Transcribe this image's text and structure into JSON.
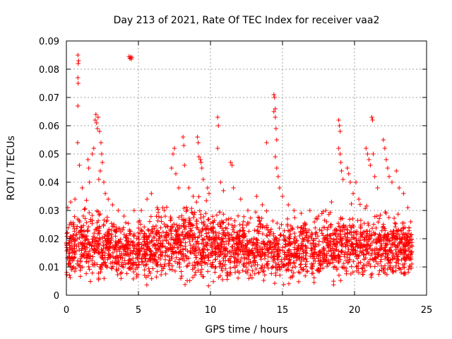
{
  "chart_data": {
    "type": "scatter",
    "title": "Day 213 of 2021, Rate Of TEC Index for receiver vaa2",
    "xlabel": "GPS time / hours",
    "ylabel": "ROTI / TECUs",
    "xlim": [
      0,
      25
    ],
    "ylim": [
      0,
      0.09
    ],
    "xticks": [
      0,
      5,
      10,
      15,
      20,
      25
    ],
    "xtick_labels": [
      "0",
      "5",
      "10",
      "15",
      "20",
      "25"
    ],
    "yticks": [
      0,
      0.01,
      0.02,
      0.03,
      0.04,
      0.05,
      0.06,
      0.07,
      0.08,
      0.09
    ],
    "ytick_labels": [
      "0",
      "0.01",
      "0.02",
      "0.03",
      "0.04",
      "0.05",
      "0.06",
      "0.07",
      "0.08",
      "0.09"
    ],
    "grid": true,
    "marker": "plus",
    "color": "#ff0000",
    "notes": "Dense band of points between ~0.003 and ~0.03 TECU across 0-24 h; listed points are the visible high outliers and representative samples.",
    "series": [
      {
        "name": "ROTI",
        "points": [
          [
            0.8,
            0.085
          ],
          [
            0.85,
            0.083
          ],
          [
            0.82,
            0.082
          ],
          [
            0.8,
            0.077
          ],
          [
            0.82,
            0.075
          ],
          [
            0.8,
            0.067
          ],
          [
            0.78,
            0.054
          ],
          [
            0.9,
            0.046
          ],
          [
            1.1,
            0.038
          ],
          [
            0.6,
            0.034
          ],
          [
            0.3,
            0.033
          ],
          [
            0.1,
            0.031
          ],
          [
            1.5,
            0.048
          ],
          [
            1.55,
            0.045
          ],
          [
            1.6,
            0.04
          ],
          [
            1.8,
            0.05
          ],
          [
            1.9,
            0.052
          ],
          [
            2.0,
            0.062
          ],
          [
            2.05,
            0.064
          ],
          [
            2.1,
            0.061
          ],
          [
            2.15,
            0.059
          ],
          [
            2.2,
            0.063
          ],
          [
            2.3,
            0.058
          ],
          [
            2.4,
            0.054
          ],
          [
            2.45,
            0.05
          ],
          [
            2.5,
            0.047
          ],
          [
            2.35,
            0.044
          ],
          [
            2.25,
            0.041
          ],
          [
            2.6,
            0.04
          ],
          [
            2.7,
            0.036
          ],
          [
            2.9,
            0.034
          ],
          [
            3.2,
            0.032
          ],
          [
            3.6,
            0.03
          ],
          [
            4.0,
            0.028
          ],
          [
            4.35,
            0.0845
          ],
          [
            4.45,
            0.0843
          ],
          [
            4.55,
            0.0842
          ],
          [
            4.4,
            0.0838
          ],
          [
            4.5,
            0.0836
          ],
          [
            4.7,
            0.03
          ],
          [
            5.2,
            0.03
          ],
          [
            5.6,
            0.034
          ],
          [
            5.9,
            0.036
          ],
          [
            6.3,
            0.031
          ],
          [
            6.8,
            0.03
          ],
          [
            7.3,
            0.045
          ],
          [
            7.4,
            0.05
          ],
          [
            7.5,
            0.052
          ],
          [
            7.6,
            0.043
          ],
          [
            7.8,
            0.038
          ],
          [
            8.1,
            0.056
          ],
          [
            8.15,
            0.053
          ],
          [
            8.2,
            0.046
          ],
          [
            8.5,
            0.038
          ],
          [
            8.8,
            0.035
          ],
          [
            9.1,
            0.056
          ],
          [
            9.15,
            0.054
          ],
          [
            9.2,
            0.049
          ],
          [
            9.3,
            0.048
          ],
          [
            9.35,
            0.047
          ],
          [
            9.4,
            0.045
          ],
          [
            9.5,
            0.041
          ],
          [
            9.8,
            0.038
          ],
          [
            9.9,
            0.036
          ],
          [
            10.5,
            0.063
          ],
          [
            10.55,
            0.06
          ],
          [
            10.5,
            0.052
          ],
          [
            10.7,
            0.04
          ],
          [
            10.9,
            0.037
          ],
          [
            11.4,
            0.047
          ],
          [
            11.5,
            0.046
          ],
          [
            11.6,
            0.038
          ],
          [
            12.1,
            0.034
          ],
          [
            12.6,
            0.03
          ],
          [
            13.2,
            0.035
          ],
          [
            13.6,
            0.032
          ],
          [
            13.9,
            0.054
          ],
          [
            14.4,
            0.071
          ],
          [
            14.45,
            0.07
          ],
          [
            14.5,
            0.066
          ],
          [
            14.4,
            0.065
          ],
          [
            14.5,
            0.063
          ],
          [
            14.55,
            0.059
          ],
          [
            14.6,
            0.055
          ],
          [
            14.5,
            0.049
          ],
          [
            14.6,
            0.045
          ],
          [
            14.7,
            0.042
          ],
          [
            14.8,
            0.038
          ],
          [
            15.0,
            0.035
          ],
          [
            15.4,
            0.032
          ],
          [
            15.8,
            0.03
          ],
          [
            16.3,
            0.029
          ],
          [
            16.9,
            0.03
          ],
          [
            17.5,
            0.028
          ],
          [
            18.0,
            0.03
          ],
          [
            18.4,
            0.033
          ],
          [
            18.9,
            0.062
          ],
          [
            18.95,
            0.06
          ],
          [
            19.0,
            0.058
          ],
          [
            18.9,
            0.052
          ],
          [
            19.0,
            0.05
          ],
          [
            19.05,
            0.047
          ],
          [
            19.1,
            0.044
          ],
          [
            19.2,
            0.041
          ],
          [
            19.5,
            0.045
          ],
          [
            19.6,
            0.043
          ],
          [
            19.7,
            0.04
          ],
          [
            19.9,
            0.036
          ],
          [
            20.1,
            0.04
          ],
          [
            20.3,
            0.034
          ],
          [
            20.8,
            0.052
          ],
          [
            20.9,
            0.05
          ],
          [
            21.0,
            0.048
          ],
          [
            21.1,
            0.046
          ],
          [
            21.2,
            0.063
          ],
          [
            21.25,
            0.062
          ],
          [
            21.3,
            0.05
          ],
          [
            21.4,
            0.042
          ],
          [
            21.6,
            0.038
          ],
          [
            22.0,
            0.055
          ],
          [
            22.1,
            0.052
          ],
          [
            22.2,
            0.048
          ],
          [
            22.3,
            0.045
          ],
          [
            22.4,
            0.042
          ],
          [
            22.6,
            0.04
          ],
          [
            22.9,
            0.044
          ],
          [
            23.1,
            0.038
          ],
          [
            23.4,
            0.036
          ],
          [
            23.7,
            0.031
          ],
          [
            23.9,
            0.026
          ]
        ],
        "band_profile_hours": [
          0,
          1,
          2,
          3,
          4,
          5,
          6,
          7,
          8,
          9,
          10,
          11,
          12,
          13,
          14,
          15,
          16,
          17,
          18,
          19,
          20,
          21,
          22,
          23,
          24
        ],
        "band_profile_upper": [
          0.028,
          0.032,
          0.033,
          0.03,
          0.025,
          0.027,
          0.03,
          0.032,
          0.034,
          0.034,
          0.032,
          0.03,
          0.029,
          0.029,
          0.03,
          0.029,
          0.028,
          0.027,
          0.029,
          0.031,
          0.031,
          0.031,
          0.031,
          0.03,
          0.025
        ],
        "band_profile_lower": [
          0.004,
          0.003,
          0.003,
          0.003,
          0.004,
          0.004,
          0.003,
          0.003,
          0.004,
          0.003,
          0.003,
          0.003,
          0.003,
          0.003,
          0.002,
          0.002,
          0.003,
          0.003,
          0.003,
          0.003,
          0.003,
          0.003,
          0.003,
          0.003,
          0.004
        ]
      }
    ]
  }
}
